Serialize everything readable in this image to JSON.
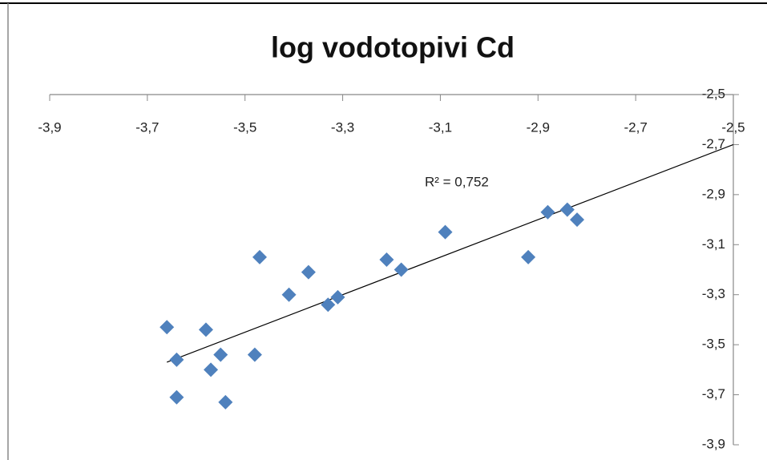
{
  "chart_data": {
    "type": "scatter",
    "title": "log vodotopivi Cd",
    "annotation": "R² = 0,752",
    "series": [
      {
        "color": "#4f81bd",
        "x": [
          -3.66,
          -3.64,
          -3.64,
          -3.58,
          -3.57,
          -3.55,
          -3.54,
          -3.48,
          -3.47,
          -3.41,
          -3.37,
          -3.33,
          -3.31,
          -3.21,
          -3.18,
          -3.09,
          -2.92,
          -2.88,
          -2.84,
          -2.82
        ],
        "values": [
          -3.43,
          -3.56,
          -3.71,
          -3.44,
          -3.6,
          -3.54,
          -3.73,
          -3.54,
          -3.15,
          -3.3,
          -3.21,
          -3.34,
          -3.31,
          -3.16,
          -3.2,
          -3.05,
          -3.15,
          -2.97,
          -2.96,
          -3.0
        ]
      }
    ],
    "trendline": {
      "color": "#000000",
      "x": [
        -3.66,
        -2.5
      ],
      "values": [
        -3.57,
        -2.7
      ]
    },
    "xlim": [
      -3.9,
      -2.5
    ],
    "xticks": [
      {
        "value": -3.9,
        "label": "-3,9"
      },
      {
        "value": -3.7,
        "label": "-3,7"
      },
      {
        "value": -3.5,
        "label": "-3,5"
      },
      {
        "value": -3.3,
        "label": "-3,3"
      },
      {
        "value": -3.1,
        "label": "-3,1"
      },
      {
        "value": -2.9,
        "label": "-2,9"
      },
      {
        "value": -2.7,
        "label": "-2,7"
      },
      {
        "value": -2.5,
        "label": "-2,5"
      }
    ],
    "ylim": [
      -3.9,
      -2.5
    ],
    "yticks": [
      {
        "value": -2.5,
        "label": "-2,5"
      },
      {
        "value": -2.7,
        "label": "-2,7"
      },
      {
        "value": -2.9,
        "label": "-2,9"
      },
      {
        "value": -3.1,
        "label": "-3,1"
      },
      {
        "value": -3.3,
        "label": "-3,3"
      },
      {
        "value": -3.5,
        "label": "-3,5"
      },
      {
        "value": -3.7,
        "label": "-3,7"
      },
      {
        "value": -3.9,
        "label": "-3,9"
      }
    ],
    "grid": false
  }
}
